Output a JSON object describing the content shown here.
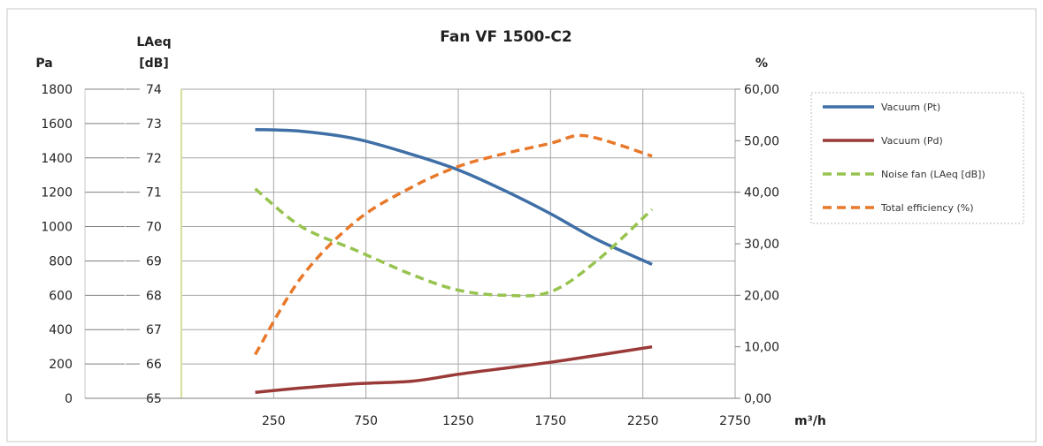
{
  "chart_data": {
    "type": "line",
    "title": "Fan VF 1500-C2",
    "xlabel": "m³/h",
    "x_ticks": [
      250,
      750,
      1250,
      1750,
      2250,
      2750
    ],
    "xlim": [
      -250,
      2750
    ],
    "axes": {
      "left_pa": {
        "label": "Pa",
        "range": [
          0,
          1800
        ],
        "ticks": [
          0,
          200,
          400,
          600,
          800,
          1000,
          1200,
          1400,
          1600,
          1800
        ]
      },
      "left_laeq": {
        "label_line1": "LAeq",
        "label_line2": "[dB]",
        "range": [
          65,
          74
        ],
        "ticks": [
          65,
          66,
          67,
          68,
          69,
          70,
          71,
          72,
          73,
          74
        ]
      },
      "right_pct": {
        "label": "%",
        "range": [
          0,
          60
        ],
        "ticks": [
          "0,00",
          "10,00",
          "20,00",
          "30,00",
          "40,00",
          "50,00",
          "60,00"
        ]
      }
    },
    "grid": true,
    "legend_position": "right",
    "series": [
      {
        "name": "Vacuum (Pt)",
        "axis": "left_pa",
        "style": "solid",
        "color": "#3f6fa6",
        "x": [
          150,
          400,
          700,
          1000,
          1250,
          1500,
          1750,
          2000,
          2300
        ],
        "y": [
          1565,
          1555,
          1510,
          1420,
          1330,
          1210,
          1075,
          925,
          780
        ]
      },
      {
        "name": "Vacuum (Pd)",
        "axis": "left_pa",
        "style": "solid",
        "color": "#9a3a38",
        "x": [
          150,
          400,
          700,
          1000,
          1250,
          1500,
          1750,
          2000,
          2300
        ],
        "y": [
          35,
          60,
          85,
          100,
          140,
          175,
          210,
          250,
          300
        ]
      },
      {
        "name": "Noise fan (LAeq [dB])",
        "axis": "left_laeq",
        "style": "dashed",
        "color": "#97c34f",
        "x": [
          150,
          400,
          700,
          1000,
          1250,
          1500,
          1750,
          2000,
          2300
        ],
        "y": [
          71.1,
          70.0,
          69.3,
          68.6,
          68.15,
          68.0,
          68.1,
          69.0,
          70.5
        ]
      },
      {
        "name": "Total efficiency (%)",
        "axis": "right_pct",
        "style": "dashed",
        "color": "#e8782a",
        "x": [
          150,
          400,
          700,
          1000,
          1250,
          1500,
          1750,
          1900,
          2050,
          2300
        ],
        "y": [
          8.5,
          23.5,
          34.5,
          41.0,
          45.0,
          47.5,
          49.5,
          51.0,
          50.0,
          47.0
        ]
      }
    ]
  }
}
